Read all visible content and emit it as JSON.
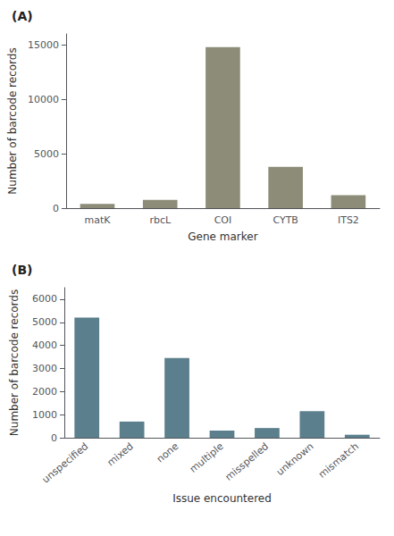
{
  "chart_data": [
    {
      "type": "bar",
      "title": "(A)",
      "categories": [
        "matK",
        "rbcL",
        "COI",
        "CYTB",
        "ITS2"
      ],
      "values": [
        400,
        750,
        14800,
        3800,
        1200
      ],
      "color": "#8c8c78",
      "xlabel": "Gene marker",
      "ylabel": "Number of barcode records",
      "ylim": [
        0,
        16000
      ],
      "yticks": [
        0,
        5000,
        10000,
        15000
      ],
      "grid": false
    },
    {
      "type": "bar",
      "title": "(B)",
      "categories": [
        "unspecified",
        "mixed",
        "none",
        "multiple",
        "misspelled",
        "unknown",
        "mismatch"
      ],
      "values": [
        5200,
        700,
        3450,
        310,
        420,
        1150,
        130
      ],
      "color": "#5b7f8c",
      "xlabel": "Issue encountered",
      "ylabel": "Number of barcode records",
      "ylim": [
        0,
        6500
      ],
      "yticks": [
        0,
        1000,
        2000,
        3000,
        4000,
        5000,
        6000
      ],
      "grid": false
    }
  ]
}
